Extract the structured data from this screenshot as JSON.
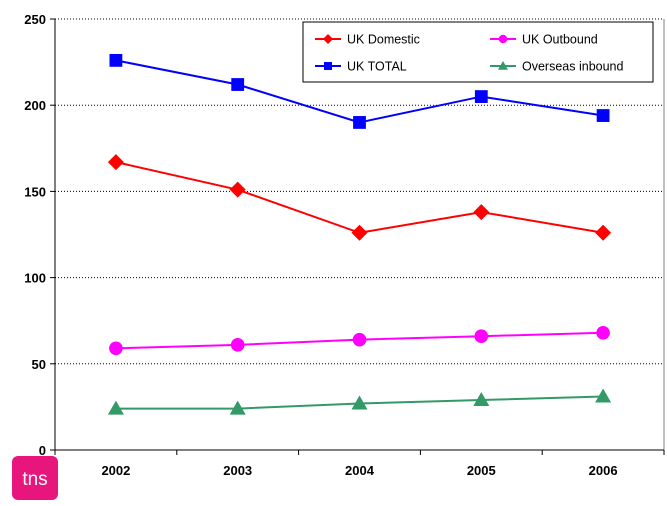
{
  "logo": {
    "text": "tns",
    "color": "#e8157c"
  },
  "chart_data": {
    "type": "line",
    "x": [
      "2002",
      "2003",
      "2004",
      "2005",
      "2006"
    ],
    "ylim": [
      0,
      250
    ],
    "yticks": [
      0,
      50,
      100,
      150,
      200,
      250
    ],
    "grid": "horizontal dotted",
    "legend_position": "top-right",
    "title": "",
    "xlabel": "",
    "ylabel": "",
    "series": [
      {
        "name": "UK Domestic",
        "color": "#ff0000",
        "marker": "diamond",
        "values": [
          167,
          151,
          126,
          138,
          126
        ]
      },
      {
        "name": "UK Outbound",
        "color": "#ff00ff",
        "marker": "circle",
        "values": [
          59,
          61,
          64,
          66,
          68
        ]
      },
      {
        "name": "UK TOTAL",
        "color": "#0000ff",
        "marker": "square",
        "values": [
          226,
          212,
          190,
          205,
          194
        ]
      },
      {
        "name": "Overseas inbound",
        "color": "#339966",
        "marker": "triangle",
        "values": [
          24,
          24,
          27,
          29,
          31
        ]
      }
    ]
  }
}
